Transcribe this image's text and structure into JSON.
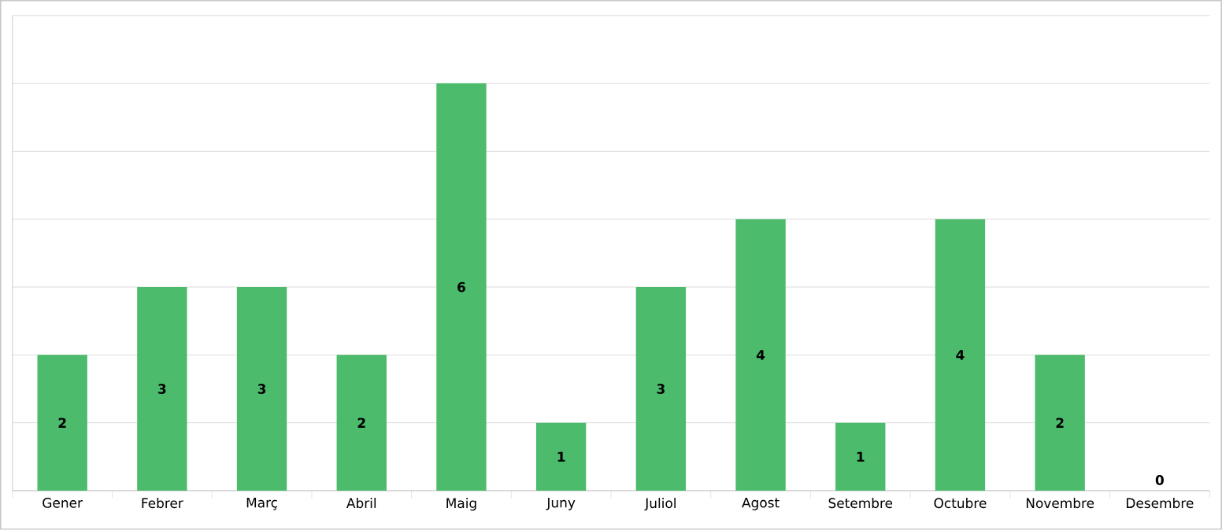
{
  "chart_data": {
    "type": "bar",
    "categories": [
      "Gener",
      "Febrer",
      "Març",
      "Abril",
      "Maig",
      "Juny",
      "Juliol",
      "Agost",
      "Setembre",
      "Octubre",
      "Novembre",
      "Desembre"
    ],
    "values": [
      2,
      3,
      3,
      2,
      6,
      1,
      3,
      4,
      1,
      4,
      2,
      0
    ],
    "color": "#4cbb6c",
    "ylim": [
      0,
      7
    ],
    "yticks": [
      {
        "value": 0,
        "label": null
      },
      {
        "value": 1,
        "label": null
      },
      {
        "value": 2,
        "label": null
      },
      {
        "value": 3,
        "label": null
      },
      {
        "value": 4,
        "label": null
      },
      {
        "value": 5,
        "label": null
      },
      {
        "value": 6,
        "label": null
      },
      {
        "value": 7,
        "label": null
      }
    ],
    "tick_labels": "x",
    "grid": "y",
    "data_labels": true
  }
}
